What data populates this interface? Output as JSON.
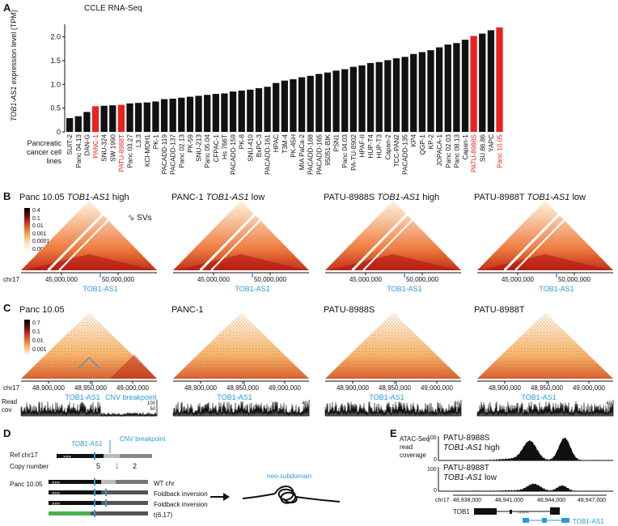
{
  "panel_letters": {
    "a": "A",
    "b": "B",
    "c": "C",
    "d": "D",
    "e": "E"
  },
  "colors": {
    "red": "#e8231e",
    "black": "#111111",
    "blue": "#2b9bd6",
    "gray": "#aaaaaa",
    "green": "#4caf50"
  },
  "chart_data": {
    "type": "bar",
    "title": "CCLE RNA-Seq",
    "ylabel_gene": "TOB1-AS1",
    "ylabel_rest": " expression level (TPM)",
    "xlabel_line1": "Pancreatic",
    "xlabel_line2": "cancer cell lines",
    "ylim": [
      0,
      2.3
    ],
    "yticks": [
      "0",
      "0.5",
      "1.0",
      "1.5",
      "2.0"
    ],
    "categories": [
      "SUIT-2",
      "Panc 04.13",
      "DAN-G",
      "PANC-1",
      "SNU-324",
      "SW 1990",
      "PATU-8988T",
      "Panc 03.27",
      "L3.3",
      "KCI-MOH1",
      "PK-1",
      "PACADD-119",
      "PACADD-137",
      "Panc 02.13",
      "PK-59",
      "SNU-213",
      "Panc 05.04",
      "CFPAC-1",
      "Hs 766T",
      "PACADD-159",
      "PK-8",
      "SNU-410",
      "BxPC-3",
      "PACADD-161",
      "HPAC",
      "T3M-4",
      "PK-45H",
      "MIA PaCa-2",
      "PACADD-188",
      "PACADD-165",
      "95051-BIK",
      "PSN1",
      "Panc 04.03",
      "PA-TU-8902",
      "HPAF-II",
      "HUP-T4",
      "HUP-T3",
      "Capan-2",
      "TCC-PAN2",
      "PACADD-135",
      "KP4",
      "QGP-1",
      "KP-2",
      "JOPACA-1",
      "Panc 02.03",
      "Panc 08.13",
      "Capan-1",
      "PATU-8988S",
      "SU.86.86",
      "YAPC",
      "Panc 10.05"
    ],
    "values": [
      0.29,
      0.33,
      0.42,
      0.54,
      0.55,
      0.56,
      0.57,
      0.6,
      0.61,
      0.62,
      0.64,
      0.69,
      0.7,
      0.72,
      0.74,
      0.76,
      0.78,
      0.8,
      0.81,
      0.85,
      0.87,
      0.89,
      0.92,
      0.95,
      1.03,
      1.08,
      1.11,
      1.15,
      1.18,
      1.22,
      1.25,
      1.29,
      1.32,
      1.37,
      1.4,
      1.45,
      1.47,
      1.51,
      1.55,
      1.58,
      1.64,
      1.68,
      1.72,
      1.78,
      1.84,
      1.87,
      1.94,
      2.02,
      2.07,
      2.14,
      2.2
    ],
    "highlight": [
      "PANC-1",
      "PATU-8988T",
      "PATU-8988S",
      "Panc 10.05"
    ]
  },
  "panel_b": {
    "titles": [
      {
        "name": "Panc 10.05",
        "gene": "TOB1-AS1",
        "state": "high"
      },
      {
        "name": "PANC-1",
        "gene": "TOB1-AS1",
        "state": "low"
      },
      {
        "name": "PATU-8988S",
        "gene": "TOB1-AS1",
        "state": "high"
      },
      {
        "name": "PATU-8988T",
        "gene": "TOB1-AS1",
        "state": "low"
      }
    ],
    "scale": [
      "0.4",
      "0.1",
      "0.01",
      "0.001",
      "0.0001",
      "0.00001"
    ],
    "svs_label": "SVs",
    "chr": "chr17",
    "tick1": "45,000,000",
    "tick2": "50,000,000",
    "gene_label": "TOB1-AS1"
  },
  "panel_c": {
    "titles": [
      "Panc 10.05",
      "PANC-1",
      "PATU-8988S",
      "PATU-8988T"
    ],
    "scale": [
      "0.7",
      "0.1",
      "0.01",
      "0.001"
    ],
    "chr": "chr17",
    "ticks": [
      "48,900,000",
      "48,950,000",
      "49,000,000"
    ],
    "gene_label": "TOB1-AS1",
    "cnv_label": "CNV breakpoint",
    "read_label_1": "Read",
    "read_label_2": "cov",
    "cov_scales": [
      [
        "100",
        "50"
      ],
      [
        "40"
      ],
      [
        "60"
      ],
      [
        "40"
      ]
    ]
  },
  "panel_d": {
    "ref_label": "Ref chr17",
    "gene_label": "TOB1-AS1",
    "cnv_label": "CNV breakpoint",
    "copy_label": "Copy number",
    "copy_values": [
      "5",
      "1",
      "2"
    ],
    "sample": "Panc 10.05",
    "rows": [
      "WT chr",
      "Foldback inversion",
      "Foldback inversion",
      "t(6,17)"
    ],
    "neo_label": "neo-subdomain"
  },
  "panel_e": {
    "header_1": "ATAC-Seq",
    "header_2": "read",
    "header_3": "coverage",
    "track1_name": "PATU-8988S",
    "track1_gene": "TOB1-AS1",
    "track1_state": "high",
    "track2_name": "PATU-8988T",
    "track2_gene": "TOB1-AS1",
    "track2_state": "low",
    "scale_top": "100",
    "scale_bottom": "0",
    "chr": "chr17",
    "ticks": [
      "48,938,000",
      "48,941,000",
      "48,944,000",
      "48,947,000"
    ],
    "gene_tob1": "TOB1",
    "gene_tob1as1": "TOB1-AS1"
  }
}
